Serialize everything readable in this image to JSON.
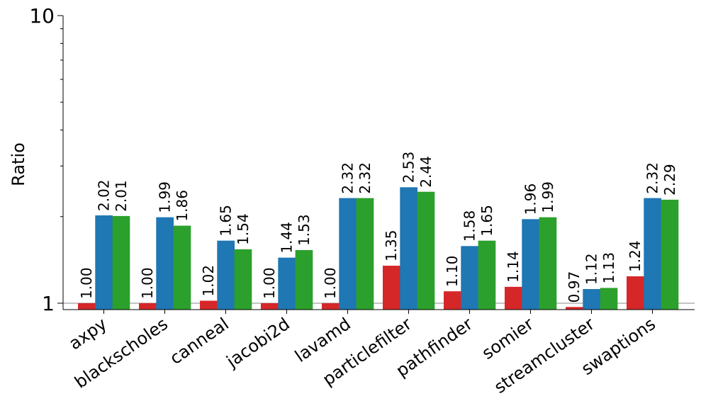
{
  "chart_data": {
    "type": "bar",
    "ylabel": "Ratio",
    "yscale": "log",
    "ylim": [
      0.95,
      10
    ],
    "y_ticks": [
      {
        "value": 1,
        "label": "1"
      },
      {
        "value": 10,
        "label": "10"
      }
    ],
    "reference_line": 1,
    "grid": false,
    "legend": "none",
    "categories": [
      "axpy",
      "blackscholes",
      "canneal",
      "jacobi2d",
      "lavamd",
      "particlefilter",
      "pathfinder",
      "somier",
      "streamcluster",
      "swaptions"
    ],
    "series": [
      {
        "color": "#d62728",
        "values": [
          1.0,
          1.0,
          1.02,
          1.0,
          1.0,
          1.35,
          1.1,
          1.14,
          0.97,
          1.24
        ],
        "labels": [
          "1.00",
          "1.00",
          "1.02",
          "1.00",
          "1.00",
          "1.35",
          "1.10",
          "1.14",
          "0.97",
          "1.24"
        ]
      },
      {
        "color": "#1f77b4",
        "values": [
          2.02,
          1.99,
          1.65,
          1.44,
          2.32,
          2.53,
          1.58,
          1.96,
          1.12,
          2.32
        ],
        "labels": [
          "2.02",
          "1.99",
          "1.65",
          "1.44",
          "2.32",
          "2.53",
          "1.58",
          "1.96",
          "1.12",
          "2.32"
        ]
      },
      {
        "color": "#2ca02c",
        "values": [
          2.01,
          1.86,
          1.54,
          1.53,
          2.32,
          2.44,
          1.65,
          1.99,
          1.13,
          2.29
        ],
        "labels": [
          "2.01",
          "1.86",
          "1.54",
          "1.53",
          "2.32",
          "2.44",
          "1.65",
          "1.99",
          "1.13",
          "2.29"
        ]
      }
    ]
  }
}
